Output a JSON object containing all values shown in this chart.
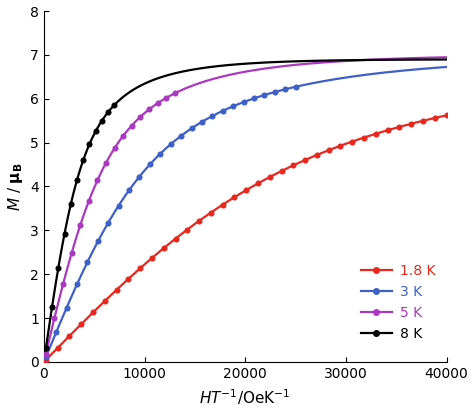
{
  "title": "",
  "xlabel_bold": "HT",
  "xlabel_sup": "-1",
  "xlabel_suffix": "/OeK",
  "xlabel_sup2": "-1",
  "ylabel": "M / μB",
  "xlim": [
    0,
    40000
  ],
  "ylim": [
    0,
    8
  ],
  "xticks": [
    0,
    10000,
    20000,
    30000,
    40000
  ],
  "yticks": [
    0,
    1,
    2,
    3,
    4,
    5,
    6,
    7,
    8
  ],
  "series": [
    {
      "label": "1.8 K",
      "color": "#e8281e",
      "T": 1.8,
      "M_sat": 7.0,
      "x_scale": 7.8e-05,
      "ht_max": 40000,
      "n_dots": 35
    },
    {
      "label": "3 K",
      "color": "#3e60c8",
      "T": 3.0,
      "M_sat": 7.0,
      "x_scale": 0.000185,
      "ht_max": 25000,
      "n_dots": 25
    },
    {
      "label": "5 K",
      "color": "#aa38c0",
      "T": 5.0,
      "M_sat": 7.0,
      "x_scale": 0.00032,
      "ht_max": 13000,
      "n_dots": 16
    },
    {
      "label": "8 K",
      "color": "#000000",
      "T": 8.0,
      "M_sat": 6.9,
      "x_scale": 0.00053,
      "ht_max": 7000,
      "n_dots": 12
    }
  ],
  "background_color": "#ffffff",
  "dot_marker": "o",
  "dot_size": 4.0,
  "line_width": 1.6,
  "J": 3.5
}
